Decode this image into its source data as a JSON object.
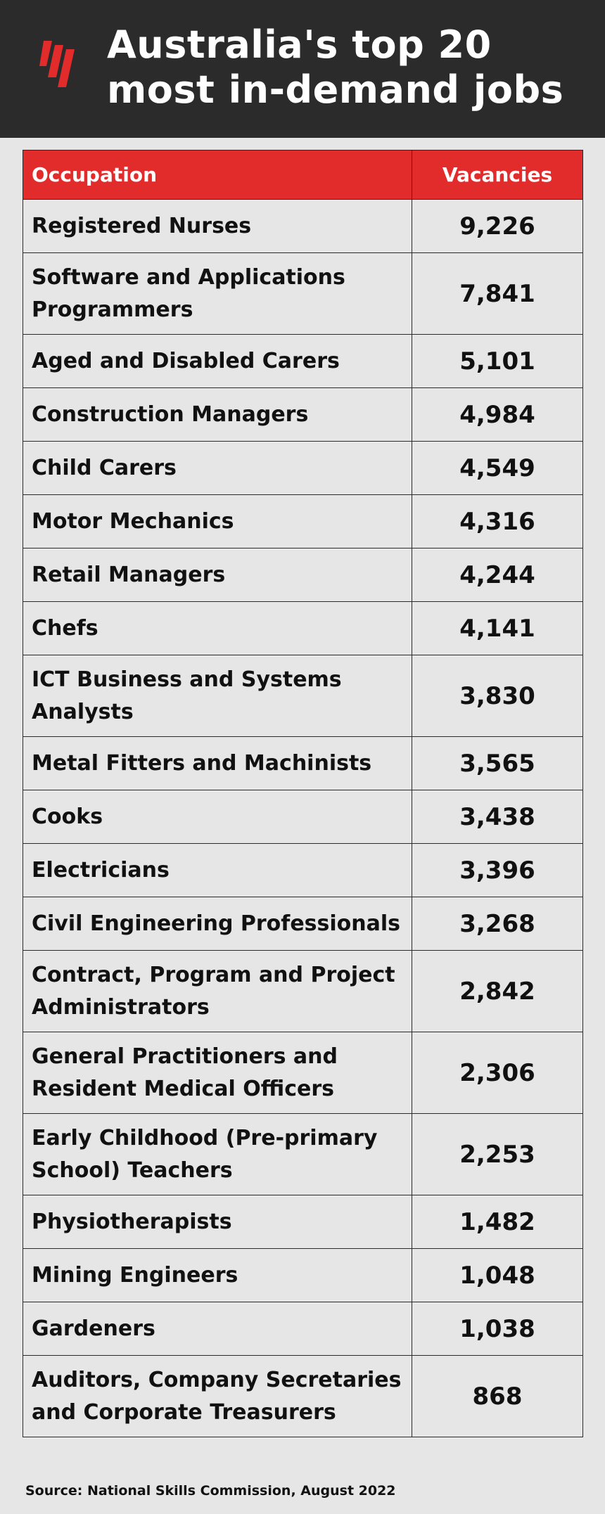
{
  "header": {
    "title": "Australia's top 20 most in-demand jobs",
    "logo_icon": "sbs-logo-icon",
    "logo_color": "#e22b2b",
    "background_color": "#2b2b2b"
  },
  "chart_data": {
    "type": "table",
    "title": "Australia's top 20 most in-demand jobs",
    "columns": [
      "Occupation",
      "Vacancies"
    ],
    "header_color": "#e22b2b",
    "rows": [
      {
        "occupation": "Registered Nurses",
        "vacancies": "9,226"
      },
      {
        "occupation": "Software and Applications Programmers",
        "vacancies": "7,841"
      },
      {
        "occupation": "Aged and Disabled Carers",
        "vacancies": "5,101"
      },
      {
        "occupation": "Construction Managers",
        "vacancies": "4,984"
      },
      {
        "occupation": "Child Carers",
        "vacancies": "4,549"
      },
      {
        "occupation": "Motor Mechanics",
        "vacancies": "4,316"
      },
      {
        "occupation": "Retail Managers",
        "vacancies": "4,244"
      },
      {
        "occupation": "Chefs",
        "vacancies": "4,141"
      },
      {
        "occupation": "ICT Business and Systems Analysts",
        "vacancies": "3,830"
      },
      {
        "occupation": "Metal Fitters and Machinists",
        "vacancies": "3,565"
      },
      {
        "occupation": "Cooks",
        "vacancies": "3,438"
      },
      {
        "occupation": "Electricians",
        "vacancies": "3,396"
      },
      {
        "occupation": "Civil Engineering Professionals",
        "vacancies": "3,268"
      },
      {
        "occupation": "Contract, Program and Project Administrators",
        "vacancies": "2,842"
      },
      {
        "occupation": "General Practitioners and Resident Medical Officers",
        "vacancies": "2,306"
      },
      {
        "occupation": "Early Childhood (Pre-primary School) Teachers",
        "vacancies": "2,253"
      },
      {
        "occupation": "Physiotherapists",
        "vacancies": "1,482"
      },
      {
        "occupation": "Mining Engineers",
        "vacancies": "1,048"
      },
      {
        "occupation": "Gardeners",
        "vacancies": "1,038"
      },
      {
        "occupation": "Auditors, Company Secretaries and Corporate Treasurers",
        "vacancies": "868"
      }
    ],
    "source": "Source: National Skills Commission, August 2022"
  }
}
